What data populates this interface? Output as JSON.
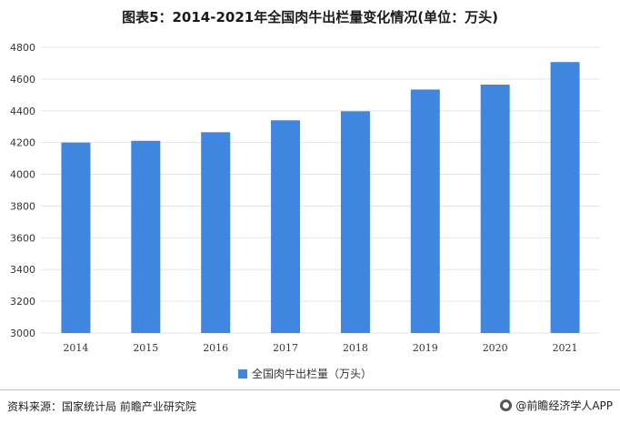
{
  "title": "图表5：2014-2021年全国肉牛出栏量变化情况(单位：万头)",
  "source": "资料来源：国家统计局 前瞻产业研究院",
  "brand": "@前瞻经济学人APP",
  "brand_icon": "circle-logo-icon",
  "colors": {
    "bar": "#3f86e0",
    "grid": "#e3e3e3",
    "text": "#333333"
  },
  "chart_data": {
    "type": "bar",
    "categories": [
      "2014",
      "2015",
      "2016",
      "2017",
      "2018",
      "2019",
      "2020",
      "2021"
    ],
    "series": [
      {
        "name": "全国肉牛出栏量（万头）",
        "values": [
          4200,
          4211,
          4265,
          4340,
          4397,
          4534,
          4565,
          4707
        ]
      }
    ],
    "ylim": [
      3000,
      4800
    ],
    "yticks": [
      3000,
      3200,
      3400,
      3600,
      3800,
      4000,
      4200,
      4400,
      4600,
      4800
    ],
    "grid": true,
    "legend": "bottom-center",
    "xlabel": "",
    "ylabel": ""
  }
}
